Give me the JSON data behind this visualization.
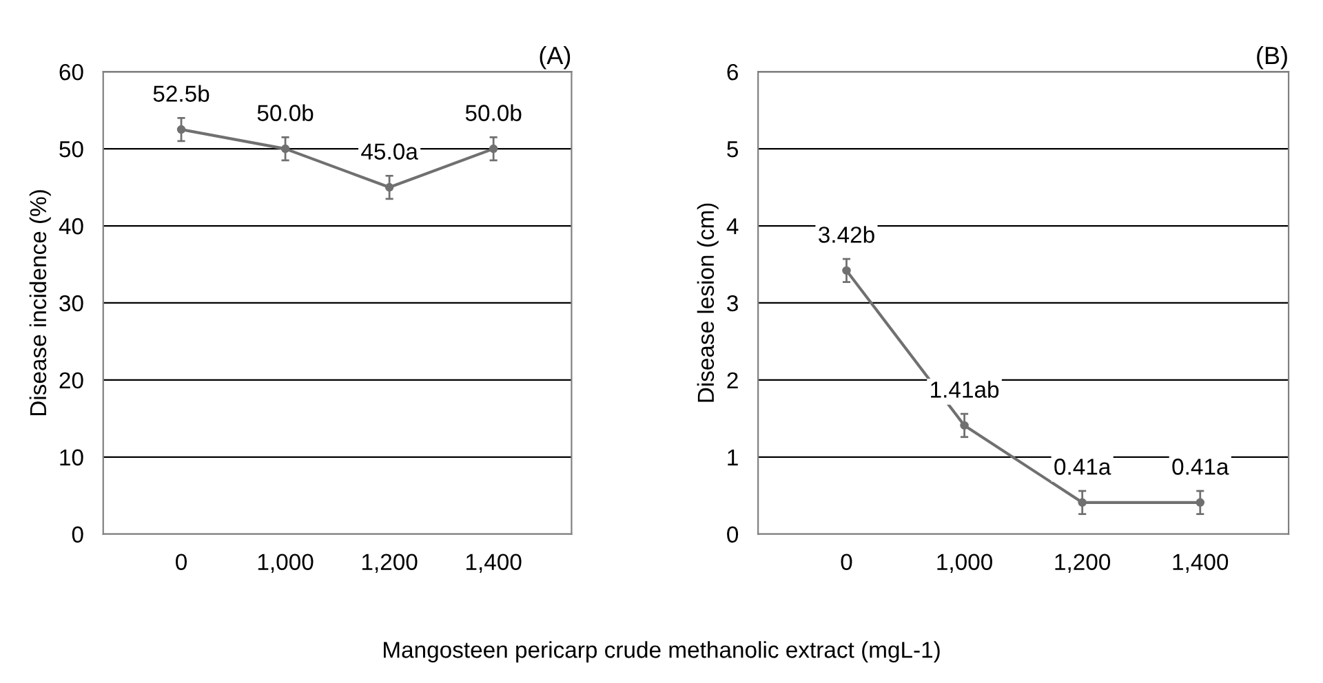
{
  "chart_data": [
    {
      "type": "line",
      "title": "(A)",
      "xlabel": "Mangosteen pericarp crude methanolic extract (mgL-1)",
      "ylabel": "Disease incidence (%)",
      "categories": [
        "0",
        "1,000",
        "1,200",
        "1,400"
      ],
      "series": [
        {
          "color": "#707070",
          "values": [
            52.5,
            50.0,
            45.0,
            50.0
          ],
          "errors": [
            1.5,
            1.5,
            1.5,
            1.5
          ],
          "value_labels": [
            "52.5b",
            "50.0b",
            "45.0a",
            "50.0b"
          ]
        }
      ],
      "ylim": [
        0,
        60
      ],
      "yticks": [
        0,
        10,
        20,
        30,
        40,
        50,
        60
      ],
      "grid": "y",
      "marker": "circle",
      "line_style": "solid"
    },
    {
      "type": "line",
      "title": "(B)",
      "ylabel": "Disease lesion (cm)",
      "categories": [
        "0",
        "1,000",
        "1,200",
        "1,400"
      ],
      "series": [
        {
          "color": "#707070",
          "values": [
            3.42,
            1.41,
            0.41,
            0.41
          ],
          "errors": [
            0.15,
            0.15,
            0.15,
            0.15
          ],
          "value_labels": [
            "3.42b",
            "1.41ab",
            "0.41a",
            "0.41a"
          ]
        }
      ],
      "ylim": [
        0,
        6
      ],
      "yticks": [
        0,
        1,
        2,
        3,
        4,
        5,
        6
      ],
      "grid": "y",
      "marker": "circle",
      "line_style": "solid"
    }
  ]
}
